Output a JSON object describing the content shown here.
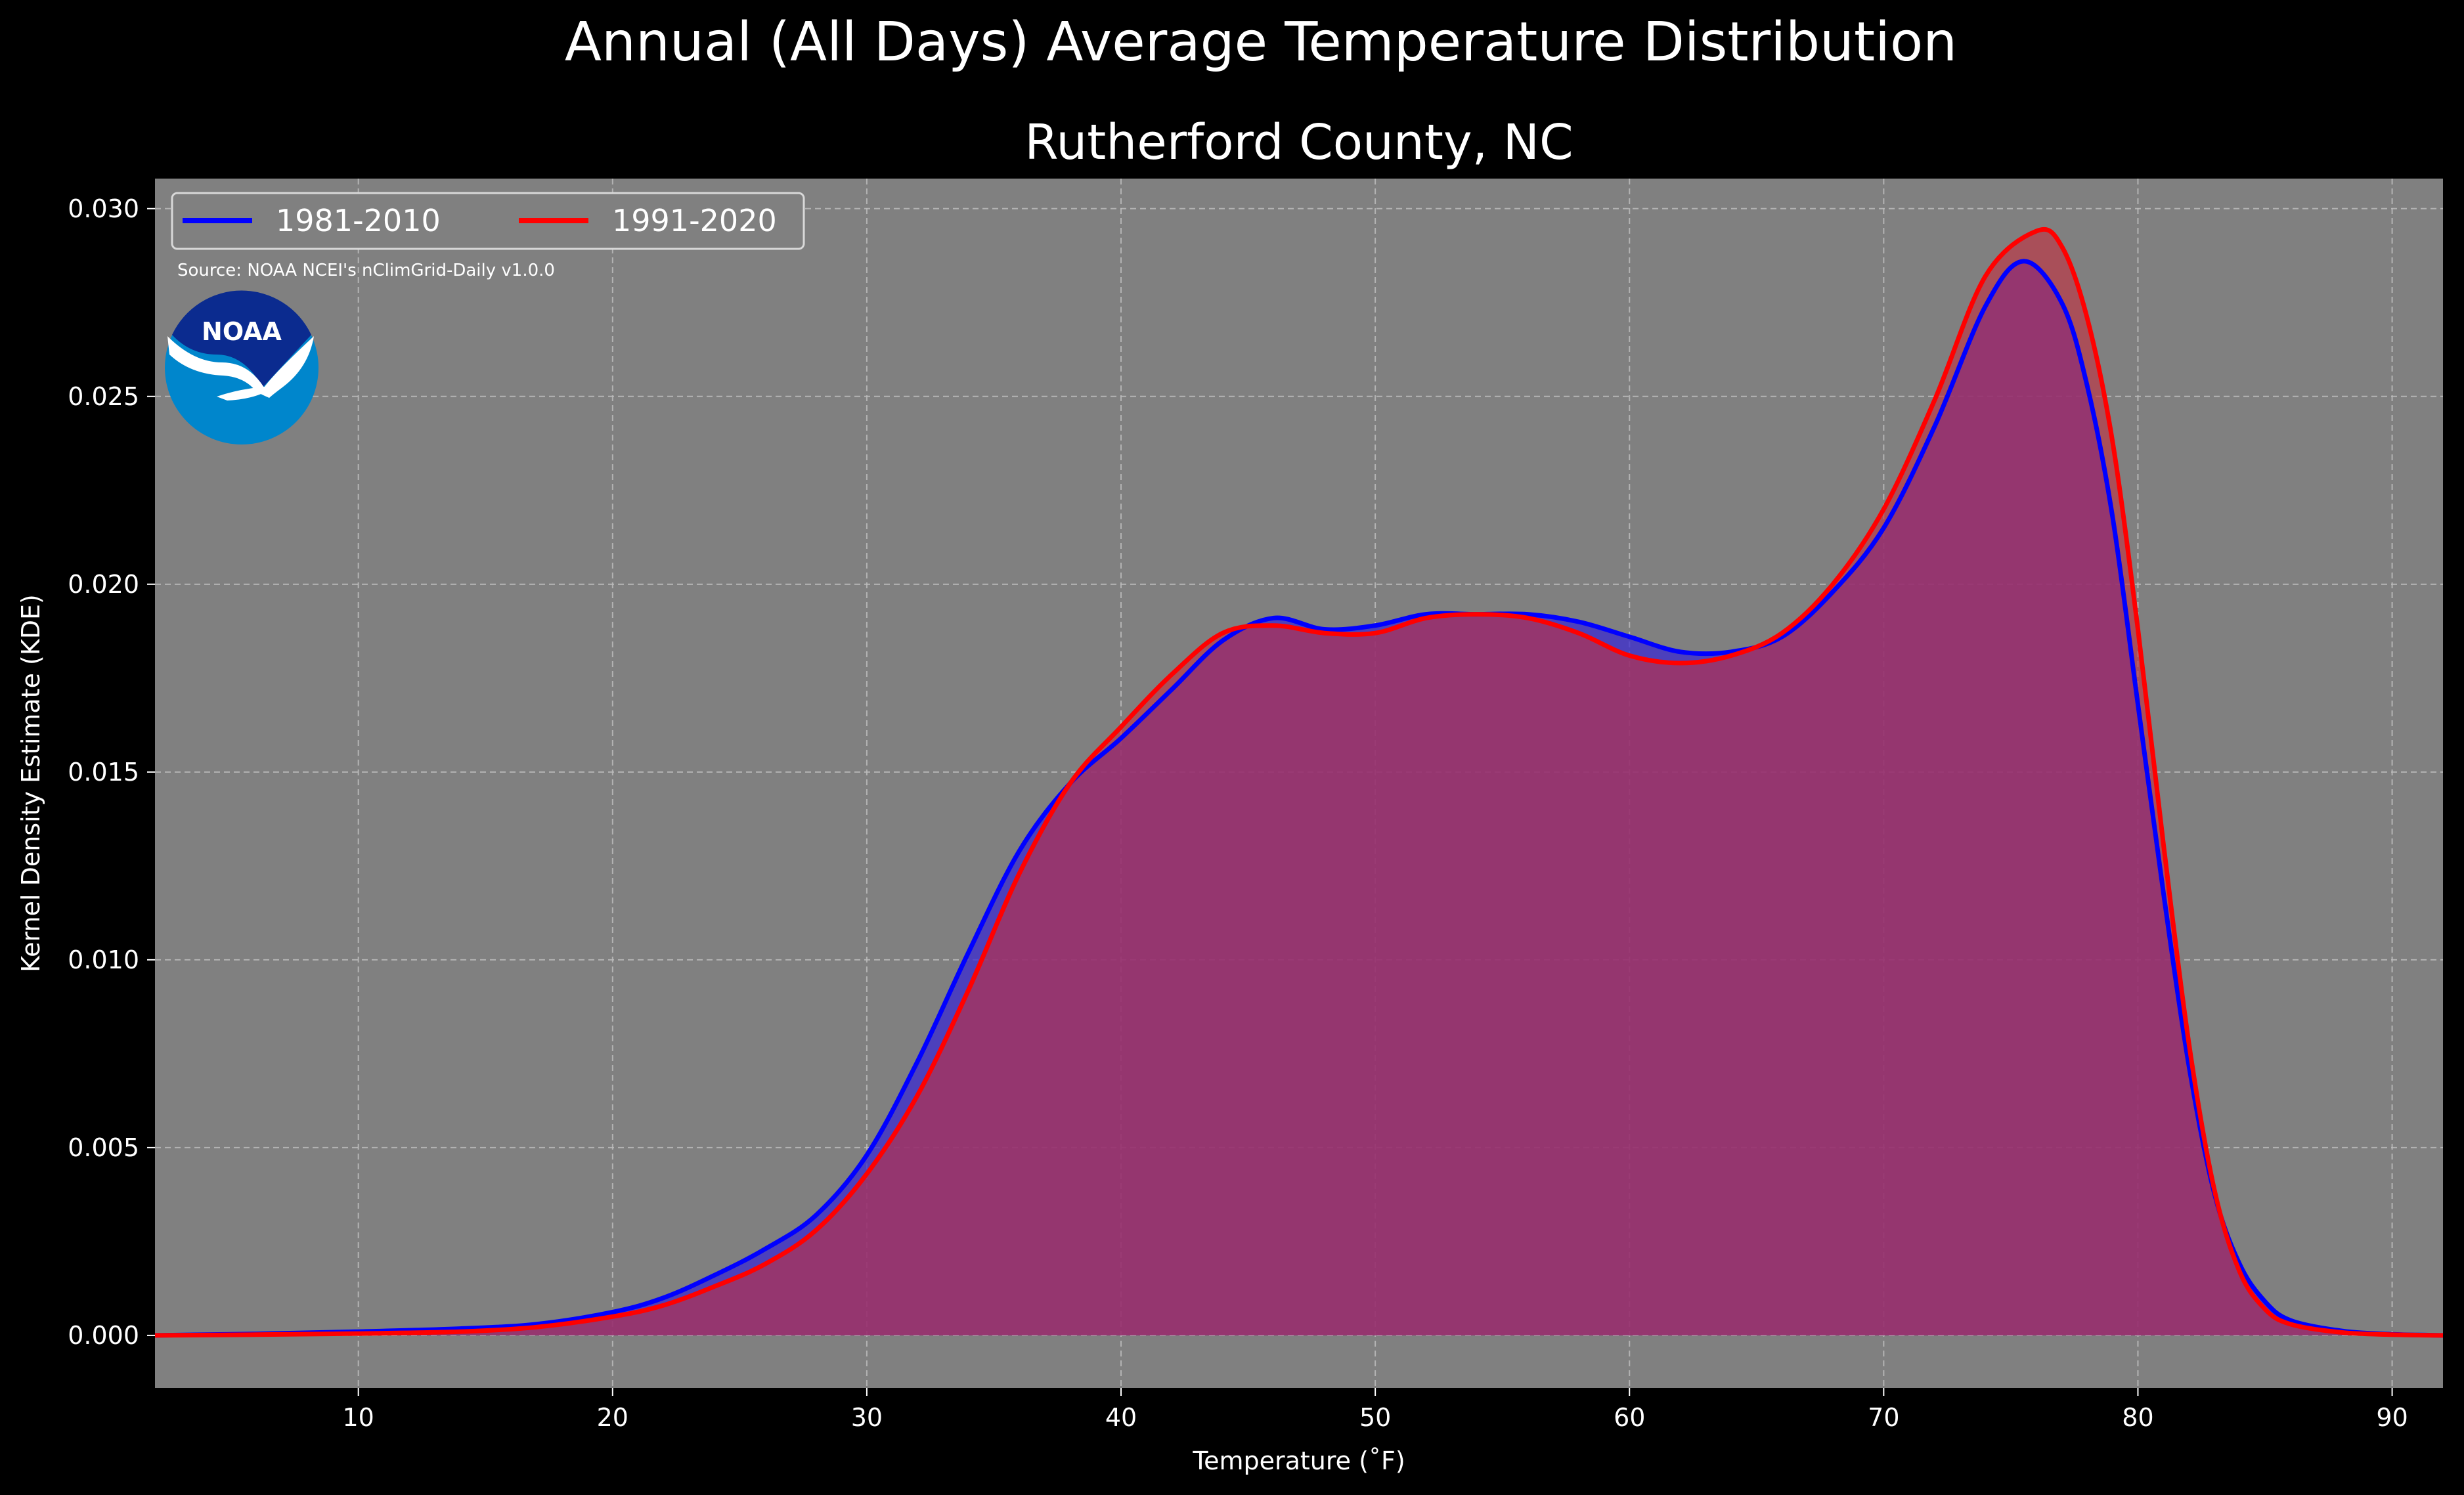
{
  "figure": {
    "suptitle": "Annual (All Days) Average Temperature Distribution",
    "source": "Source: NOAA NCEI's nClimGrid-Daily v1.0.0",
    "logo_text": "NOAA"
  },
  "colors": {
    "background": "#000000",
    "plot_bg": "#808080",
    "series_1981": "#0000ff",
    "series_1991": "#ff0000",
    "fill_overlap": "#9b1f5e",
    "fill_1981": "#3b2bd0",
    "fill_1991": "#c23040"
  },
  "chart_data": {
    "type": "area",
    "title": "Rutherford County, NC",
    "xlabel": "Temperature ($^\\circ$F)",
    "xlabel_display": "Temperature (˚F)",
    "ylabel": "Kernel Density Estimate (KDE)",
    "xlim": [
      2,
      92
    ],
    "ylim": [
      -0.0014,
      0.0308
    ],
    "xticks": [
      10,
      20,
      30,
      40,
      50,
      60,
      70,
      80,
      90
    ],
    "yticks": [
      0.0,
      0.005,
      0.01,
      0.015,
      0.02,
      0.025,
      0.03
    ],
    "ytick_labels": [
      "0.000",
      "0.005",
      "0.010",
      "0.015",
      "0.020",
      "0.025",
      "0.030"
    ],
    "grid": true,
    "legend_position": "upper-left",
    "series": [
      {
        "name": "1981-2010",
        "color": "#0000ff",
        "x": [
          2,
          6,
          10,
          14,
          17,
          20,
          22,
          24,
          26,
          28,
          30,
          32,
          34,
          36,
          38,
          40,
          42,
          44,
          46,
          48,
          50,
          52,
          54,
          56,
          58,
          60,
          62,
          64,
          66,
          68,
          70,
          72,
          74,
          75.5,
          77,
          78,
          79,
          80,
          81,
          82,
          83,
          84,
          85,
          86,
          88,
          90,
          92
        ],
        "y": [
          0.0,
          4e-05,
          0.0001,
          0.00018,
          0.0003,
          0.00062,
          0.001,
          0.0016,
          0.0023,
          0.0032,
          0.0048,
          0.0073,
          0.0102,
          0.0129,
          0.0147,
          0.0159,
          0.0172,
          0.0185,
          0.0191,
          0.0188,
          0.0189,
          0.0192,
          0.0192,
          0.0192,
          0.019,
          0.0186,
          0.0182,
          0.0182,
          0.0186,
          0.0198,
          0.0215,
          0.0242,
          0.0274,
          0.0286,
          0.0275,
          0.0253,
          0.0218,
          0.0168,
          0.0118,
          0.0072,
          0.0038,
          0.0019,
          0.0009,
          0.0004,
          0.00012,
          3e-05,
          0.0
        ]
      },
      {
        "name": "1991-2020",
        "color": "#ff0000",
        "x": [
          2,
          6,
          10,
          14,
          17,
          20,
          22,
          24,
          26,
          28,
          30,
          32,
          34,
          36,
          38,
          40,
          42,
          44,
          46,
          48,
          50,
          52,
          54,
          56,
          58,
          60,
          62,
          64,
          66,
          68,
          70,
          72,
          74,
          76,
          77,
          78,
          79,
          80,
          81,
          82,
          83,
          84,
          85,
          86,
          88,
          90,
          92
        ],
        "y": [
          0.0,
          2e-05,
          5e-05,
          0.0001,
          0.00022,
          0.0005,
          0.0008,
          0.0013,
          0.0019,
          0.0028,
          0.0043,
          0.0064,
          0.0092,
          0.0123,
          0.0147,
          0.0162,
          0.0176,
          0.0187,
          0.0189,
          0.0187,
          0.0187,
          0.0191,
          0.0192,
          0.0191,
          0.0187,
          0.0181,
          0.0179,
          0.0181,
          0.0187,
          0.02,
          0.022,
          0.0249,
          0.0282,
          0.0294,
          0.029,
          0.0271,
          0.0238,
          0.0188,
          0.0131,
          0.0078,
          0.0039,
          0.0017,
          0.0007,
          0.0003,
          8e-05,
          2e-05,
          0.0
        ]
      }
    ]
  }
}
